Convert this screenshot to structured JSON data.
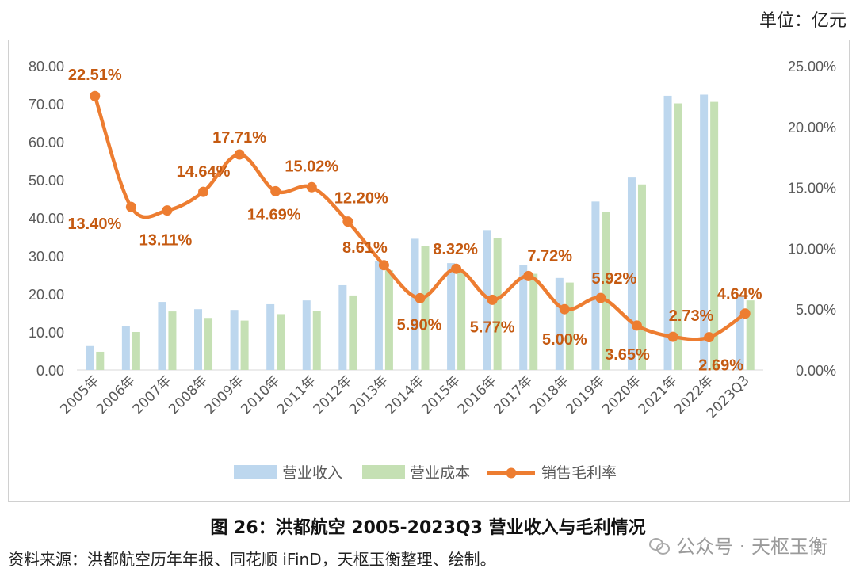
{
  "unit_label": "单位：亿元",
  "caption": "图 26：洪都航空 2005-2023Q3 营业收入与毛利情况",
  "source": "资料来源：洪都航空历年年报、同花顺 iFinD，天枢玉衡整理、绘制。",
  "watermark": "公众号 · 天枢玉衡",
  "colors": {
    "revenue": "#bdd7ee",
    "cost": "#c5e0b4",
    "margin": "#ed7d31",
    "axis": "#595959",
    "label": "#c55a11"
  },
  "chart_data": {
    "type": "bar+line",
    "categories": [
      "2005年",
      "2006年",
      "2007年",
      "2008年",
      "2009年",
      "2010年",
      "2011年",
      "2012年",
      "2013年",
      "2014年",
      "2015年",
      "2016年",
      "2017年",
      "2018年",
      "2019年",
      "2020年",
      "2021年",
      "2022年",
      "2023Q3"
    ],
    "series": [
      {
        "name": "营业收入",
        "type": "bar",
        "axis": "left",
        "values": [
          6.3,
          11.5,
          17.9,
          16.0,
          15.8,
          17.3,
          18.3,
          22.3,
          28.6,
          34.5,
          28.1,
          36.8,
          27.5,
          24.2,
          44.3,
          50.6,
          72.1,
          72.4,
          19.2
        ]
      },
      {
        "name": "营业成本",
        "type": "bar",
        "axis": "left",
        "values": [
          4.8,
          10.0,
          15.4,
          13.7,
          13.0,
          14.7,
          15.5,
          19.6,
          26.2,
          32.5,
          25.7,
          34.6,
          25.3,
          23.0,
          41.5,
          48.8,
          70.1,
          70.5,
          18.3
        ]
      },
      {
        "name": "销售毛利率",
        "type": "line",
        "axis": "right",
        "values": [
          22.51,
          13.4,
          13.11,
          14.64,
          17.71,
          14.69,
          15.02,
          12.2,
          8.61,
          5.9,
          8.32,
          5.77,
          7.72,
          5.0,
          5.92,
          3.65,
          2.73,
          2.69,
          4.64
        ],
        "labels": [
          "22.51%",
          "13.40%",
          "13.11%",
          "14.64%",
          "17.71%",
          "14.69%",
          "15.02%",
          "12.20%",
          "8.61%",
          "5.90%",
          "8.32%",
          "5.77%",
          "7.72%",
          "5.00%",
          "5.92%",
          "3.65%",
          "2.73%",
          "2.69%",
          "4.64%"
        ]
      }
    ],
    "y_left": {
      "range": [
        0,
        80
      ],
      "ticks": [
        "0.00",
        "10.00",
        "20.00",
        "30.00",
        "40.00",
        "50.00",
        "60.00",
        "70.00",
        "80.00"
      ]
    },
    "y_right": {
      "range": [
        0,
        25
      ],
      "ticks": [
        "0.00%",
        "5.00%",
        "10.00%",
        "15.00%",
        "20.00%",
        "25.00%"
      ]
    },
    "grid": false,
    "legend": "bottom"
  }
}
